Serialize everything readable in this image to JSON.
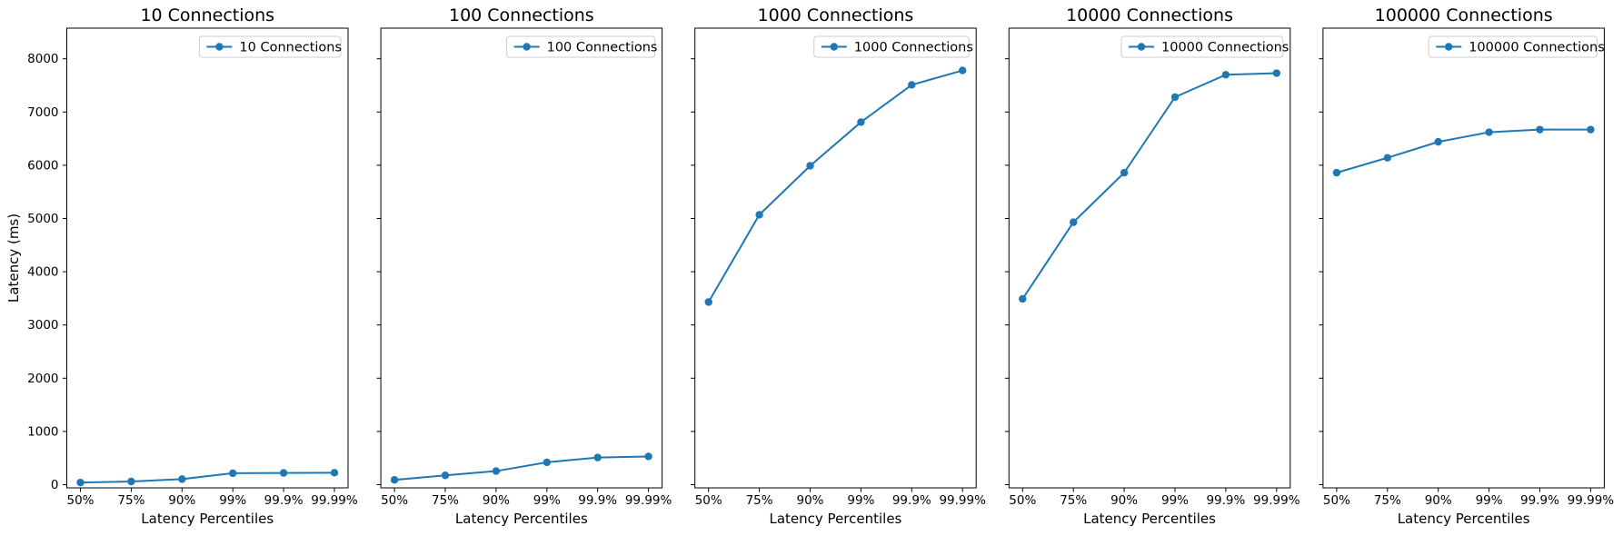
{
  "figure": {
    "background": "#ffffff",
    "line_color": "#1f77b4",
    "x_axis_label": "Latency Percentiles",
    "y_axis_label": "Latency (ms)",
    "categories": [
      "50%",
      "75%",
      "90%",
      "99%",
      "99.9%",
      "99.99%"
    ],
    "y_ticks": [
      0,
      1000,
      2000,
      3000,
      4000,
      5000,
      6000,
      7000,
      8000
    ]
  },
  "chart_data": [
    {
      "type": "line",
      "title": "10 Connections",
      "legend_label": "10 Connections",
      "xlabel": "Latency Percentiles",
      "ylabel": "Latency (ms)",
      "categories": [
        "50%",
        "75%",
        "90%",
        "99%",
        "99.9%",
        "99.99%"
      ],
      "values": [
        40,
        60,
        105,
        215,
        220,
        225
      ],
      "ylim": [
        -60,
        8590
      ],
      "legend_position": "upper right"
    },
    {
      "type": "line",
      "title": "100 Connections",
      "legend_label": "100 Connections",
      "xlabel": "Latency Percentiles",
      "ylabel": "",
      "categories": [
        "50%",
        "75%",
        "90%",
        "99%",
        "99.9%",
        "99.99%"
      ],
      "values": [
        90,
        175,
        255,
        420,
        510,
        530
      ],
      "ylim": [
        -60,
        8590
      ],
      "legend_position": "upper right"
    },
    {
      "type": "line",
      "title": "1000 Connections",
      "legend_label": "1000 Connections",
      "xlabel": "Latency Percentiles",
      "ylabel": "",
      "categories": [
        "50%",
        "75%",
        "90%",
        "99%",
        "99.9%",
        "99.99%"
      ],
      "values": [
        3430,
        5070,
        5990,
        6810,
        7510,
        7780
      ],
      "ylim": [
        -60,
        8590
      ],
      "legend_position": "upper right"
    },
    {
      "type": "line",
      "title": "10000 Connections",
      "legend_label": "10000 Connections",
      "xlabel": "Latency Percentiles",
      "ylabel": "",
      "categories": [
        "50%",
        "75%",
        "90%",
        "99%",
        "99.9%",
        "99.99%"
      ],
      "values": [
        3490,
        4930,
        5860,
        7280,
        7700,
        7730
      ],
      "ylim": [
        -60,
        8590
      ],
      "legend_position": "upper right"
    },
    {
      "type": "line",
      "title": "100000 Connections",
      "legend_label": "100000 Connections",
      "xlabel": "Latency Percentiles",
      "ylabel": "",
      "categories": [
        "50%",
        "75%",
        "90%",
        "99%",
        "99.9%",
        "99.99%"
      ],
      "values": [
        5860,
        6140,
        6440,
        6620,
        6670,
        6670
      ],
      "ylim": [
        -60,
        8590
      ],
      "legend_position": "upper right"
    }
  ]
}
